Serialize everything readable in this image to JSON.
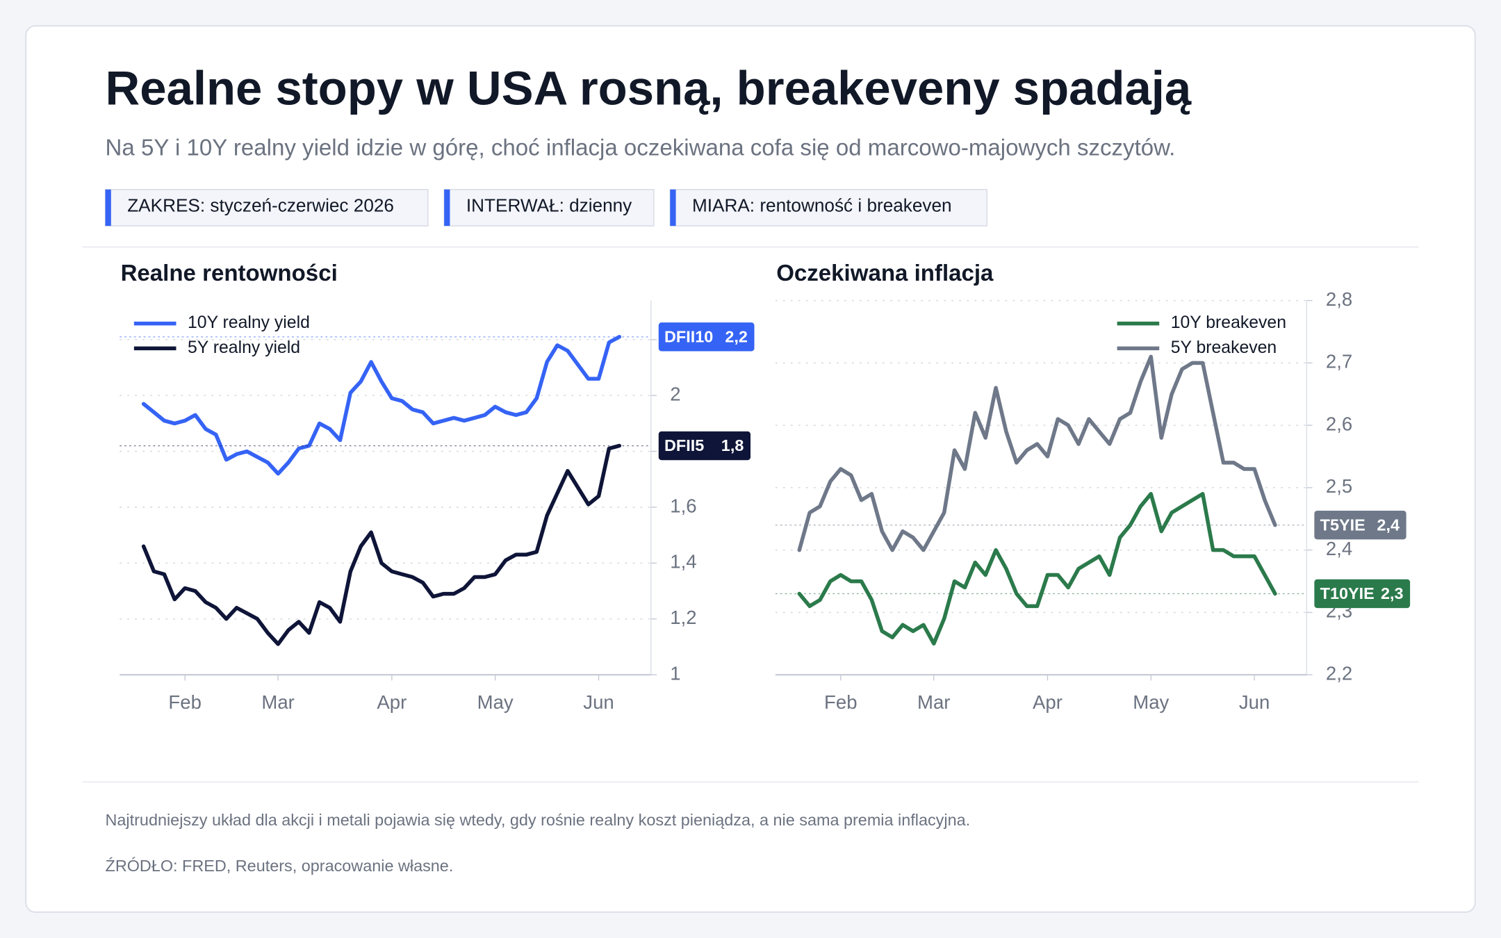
{
  "header": {
    "title": "Realne stopy w USA rosną, breakeveny spadają",
    "subtitle": "Na 5Y i 10Y realny yield idzie w górę, choć inflacja oczekiwana cofa się od marcowo-majowych szczytów."
  },
  "chips": [
    "ZAKRES: styczeń-czerwiec 2026",
    "INTERWAŁ: dzienny",
    "MIARA: rentowność i breakeven"
  ],
  "chart_data": [
    {
      "type": "line",
      "title": "Realne rentowności",
      "categories": [
        null,
        null,
        null,
        null,
        "Feb",
        null,
        null,
        null,
        null,
        null,
        null,
        null,
        null,
        "Mar",
        null,
        null,
        null,
        null,
        null,
        null,
        null,
        null,
        null,
        null,
        "Apr",
        null,
        null,
        null,
        null,
        null,
        null,
        null,
        null,
        null,
        "May",
        null,
        null,
        null,
        null,
        null,
        null,
        null,
        null,
        null,
        "Jun",
        null,
        null
      ],
      "series": [
        {
          "name": "10Y realny yield",
          "ticker": "DFII10",
          "end_label": "2,2",
          "color": "#3563f5",
          "values": [
            1.97,
            1.94,
            1.91,
            1.9,
            1.91,
            1.93,
            1.88,
            1.86,
            1.77,
            1.79,
            1.8,
            1.78,
            1.76,
            1.72,
            1.76,
            1.81,
            1.82,
            1.9,
            1.88,
            1.84,
            2.01,
            2.05,
            2.12,
            2.05,
            1.99,
            1.98,
            1.95,
            1.94,
            1.9,
            1.91,
            1.92,
            1.91,
            1.92,
            1.93,
            1.96,
            1.94,
            1.93,
            1.94,
            1.99,
            2.12,
            2.18,
            2.16,
            2.11,
            2.06,
            2.06,
            2.19,
            2.21
          ]
        },
        {
          "name": "5Y realny yield",
          "ticker": "DFII5",
          "end_label": "1,8",
          "color": "#0f1538",
          "values": [
            1.46,
            1.37,
            1.36,
            1.27,
            1.31,
            1.3,
            1.26,
            1.24,
            1.2,
            1.24,
            1.22,
            1.2,
            1.15,
            1.11,
            1.16,
            1.19,
            1.15,
            1.26,
            1.24,
            1.19,
            1.37,
            1.46,
            1.51,
            1.4,
            1.37,
            1.36,
            1.35,
            1.33,
            1.28,
            1.29,
            1.29,
            1.31,
            1.35,
            1.35,
            1.36,
            1.41,
            1.43,
            1.43,
            1.44,
            1.57,
            1.65,
            1.73,
            1.67,
            1.61,
            1.64,
            1.81,
            1.82
          ]
        }
      ],
      "ylim": [
        1,
        2.34
      ],
      "yticks": [
        1,
        {
          "value": 1.2,
          "label": "1,2"
        },
        {
          "value": 1.4,
          "label": "1,4"
        },
        {
          "value": 1.6,
          "label": "1,6"
        },
        {
          "value": 1.8,
          "label": "1,8"
        },
        2,
        {
          "value": 2.2,
          "label": "2,2"
        }
      ],
      "grid": true,
      "legend": "upper left"
    },
    {
      "type": "line",
      "title": "Oczekiwana inflacja",
      "categories": [
        null,
        null,
        null,
        null,
        "Feb",
        null,
        null,
        null,
        null,
        null,
        null,
        null,
        null,
        "Mar",
        null,
        null,
        null,
        null,
        null,
        null,
        null,
        null,
        null,
        null,
        "Apr",
        null,
        null,
        null,
        null,
        null,
        null,
        null,
        null,
        null,
        "May",
        null,
        null,
        null,
        null,
        null,
        null,
        null,
        null,
        null,
        "Jun",
        null,
        null
      ],
      "series": [
        {
          "name": "10Y breakeven",
          "ticker": "T10YIE",
          "end_label": "2,3",
          "color": "#2b7a4b",
          "values": [
            2.33,
            2.31,
            2.32,
            2.35,
            2.36,
            2.35,
            2.35,
            2.32,
            2.27,
            2.26,
            2.28,
            2.27,
            2.28,
            2.25,
            2.29,
            2.35,
            2.34,
            2.38,
            2.36,
            2.4,
            2.37,
            2.33,
            2.31,
            2.31,
            2.36,
            2.36,
            2.34,
            2.37,
            2.38,
            2.39,
            2.36,
            2.42,
            2.44,
            2.47,
            2.49,
            2.43,
            2.46,
            2.47,
            2.48,
            2.49,
            2.4,
            2.4,
            2.39,
            2.39,
            2.39,
            2.36,
            2.33
          ]
        },
        {
          "name": "5Y breakeven",
          "ticker": "T5YIE",
          "end_label": "2,4",
          "color": "#6e7889",
          "values": [
            2.4,
            2.46,
            2.47,
            2.51,
            2.53,
            2.52,
            2.48,
            2.49,
            2.43,
            2.4,
            2.43,
            2.42,
            2.4,
            2.43,
            2.46,
            2.56,
            2.53,
            2.62,
            2.58,
            2.66,
            2.59,
            2.54,
            2.56,
            2.57,
            2.55,
            2.61,
            2.6,
            2.57,
            2.61,
            2.59,
            2.57,
            2.61,
            2.62,
            2.67,
            2.71,
            2.58,
            2.65,
            2.69,
            2.7,
            2.7,
            2.62,
            2.54,
            2.54,
            2.53,
            2.53,
            2.48,
            2.44
          ]
        }
      ],
      "ylim": [
        2.2,
        2.8
      ],
      "yticks": [
        {
          "value": 2.2,
          "label": "2,2"
        },
        {
          "value": 2.3,
          "label": "2,3"
        },
        {
          "value": 2.4,
          "label": "2,4"
        },
        {
          "value": 2.5,
          "label": "2,5"
        },
        {
          "value": 2.6,
          "label": "2,6"
        },
        {
          "value": 2.7,
          "label": "2,7"
        },
        {
          "value": 2.8,
          "label": "2,8"
        }
      ],
      "grid": true,
      "legend": "upper right"
    }
  ],
  "footer": {
    "note": "Najtrudniejszy układ dla akcji i metali pojawia się wtedy, gdy rośnie realny koszt pieniądza, a nie sama premia inflacyjna.",
    "source": "ŹRÓDŁO: FRED, Reuters, opracowanie własne."
  }
}
